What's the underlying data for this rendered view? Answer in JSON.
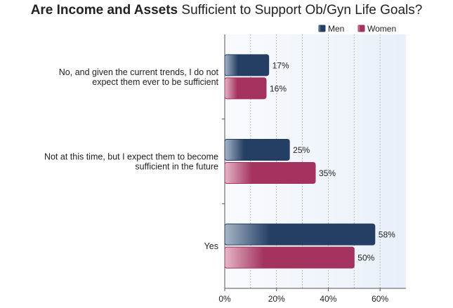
{
  "chart_data": {
    "type": "bar",
    "orientation": "horizontal",
    "title": {
      "bold_part": "Are Income and Assets",
      "rest": " Sufficient to Support Ob/Gyn Life Goals?"
    },
    "categories": [
      [
        "No, and given the current trends, I do not",
        "expect them ever to be sufficient"
      ],
      [
        "Not at this time, but I expect them to become",
        "sufficient in the future"
      ],
      [
        "Yes"
      ]
    ],
    "series": [
      {
        "name": "Men",
        "values": [
          17,
          25,
          58
        ],
        "labels": [
          "17%",
          "25%",
          "58%"
        ],
        "color": "#243f63",
        "light": "#a7b6c8"
      },
      {
        "name": "Women",
        "values": [
          16,
          35,
          50
        ],
        "labels": [
          "16%",
          "35%",
          "50%"
        ],
        "color": "#a3335e",
        "light": "#e6b6c9"
      }
    ],
    "xlim": [
      0,
      70
    ],
    "xticks": [
      0,
      20,
      40,
      60
    ],
    "xtick_labels": [
      "0%",
      "20%",
      "40%",
      "60%"
    ],
    "grid": true,
    "legend_position": "top-right",
    "plot_background": "#eef3fa"
  }
}
